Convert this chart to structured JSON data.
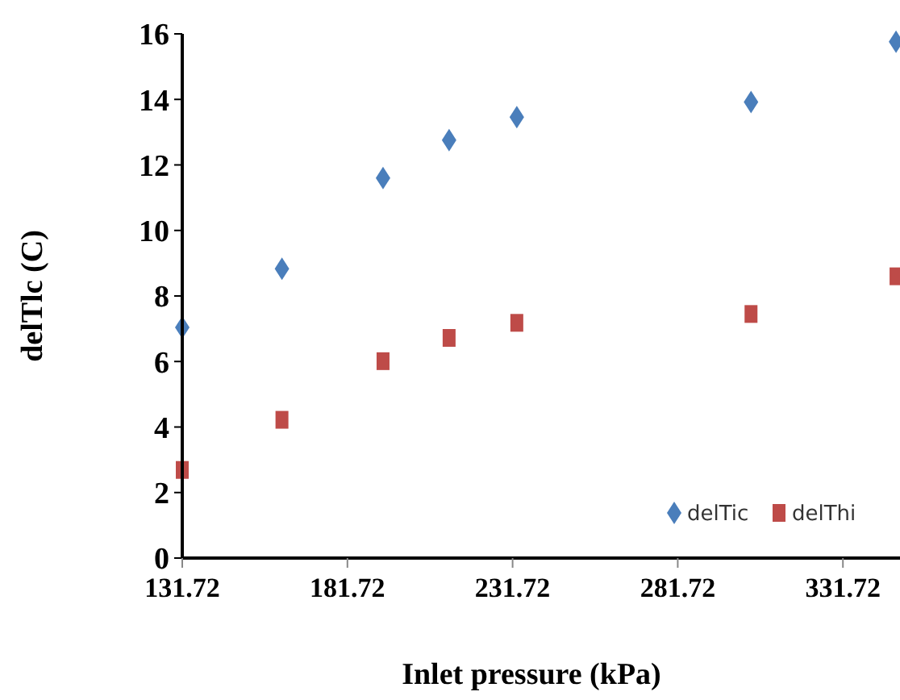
{
  "chart_data": {
    "type": "scatter",
    "xlabel": "Inlet pressure (kPa)",
    "ylabel": "delTlc (C)",
    "x": [
      131.72,
      161.9,
      192.5,
      212.5,
      233,
      303.9,
      347.8
    ],
    "xlim": [
      131.72,
      349
    ],
    "xticks": [
      131.72,
      181.72,
      231.72,
      281.72,
      331.72
    ],
    "ylim": [
      0,
      16
    ],
    "yticks": [
      0,
      2,
      4,
      6,
      8,
      10,
      12,
      14,
      16
    ],
    "series": [
      {
        "name": "delTic",
        "color": "#4a7ebb",
        "marker": "diamond",
        "values": [
          7.04,
          8.83,
          11.6,
          12.76,
          13.46,
          13.92,
          15.76
        ]
      },
      {
        "name": "delThi",
        "color": "#be4b48",
        "marker": "square",
        "values": [
          2.69,
          4.22,
          6.01,
          6.72,
          7.18,
          7.45,
          8.6
        ]
      }
    ],
    "grid": false,
    "legend": "bottom right"
  }
}
